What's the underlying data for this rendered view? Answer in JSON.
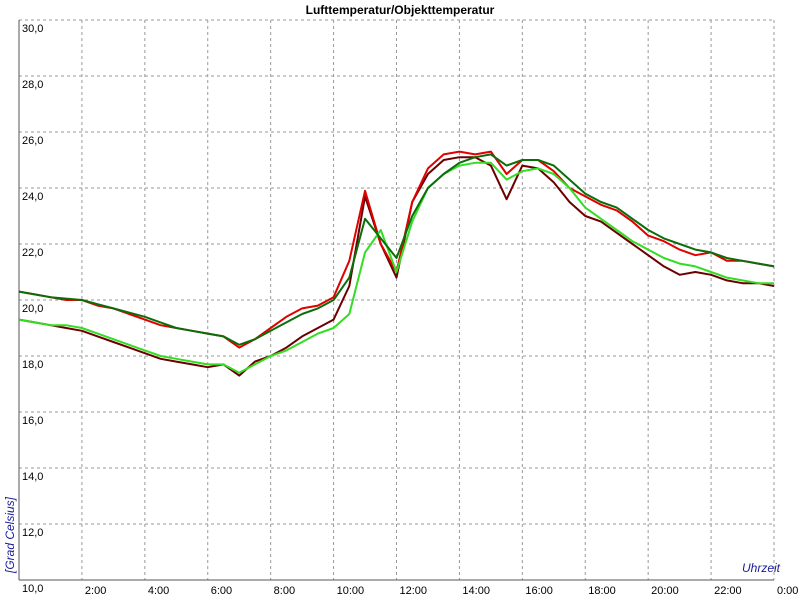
{
  "chart_data": {
    "type": "line",
    "title": "Lufttemperatur/Objekttemperatur",
    "y_label": "[Grad Celsius]",
    "x_label": "Uhrzeit",
    "xlim": [
      0,
      24
    ],
    "ylim": [
      10,
      30
    ],
    "xticks": [
      {
        "value": 2,
        "label": "2:00"
      },
      {
        "value": 4,
        "label": "4:00"
      },
      {
        "value": 6,
        "label": "6:00"
      },
      {
        "value": 8,
        "label": "8:00"
      },
      {
        "value": 10,
        "label": "10:00"
      },
      {
        "value": 12,
        "label": "12:00"
      },
      {
        "value": 14,
        "label": "14:00"
      },
      {
        "value": 16,
        "label": "16:00"
      },
      {
        "value": 18,
        "label": "18:00"
      },
      {
        "value": 20,
        "label": "20:00"
      },
      {
        "value": 22,
        "label": "22:00"
      },
      {
        "value": 24,
        "label": "0:00"
      }
    ],
    "yticks": [
      {
        "value": 10,
        "label": "10,0"
      },
      {
        "value": 12,
        "label": "12,0"
      },
      {
        "value": 14,
        "label": "14,0"
      },
      {
        "value": 16,
        "label": "16,0"
      },
      {
        "value": 18,
        "label": "18,0"
      },
      {
        "value": 20,
        "label": "20,0"
      },
      {
        "value": 22,
        "label": "22,0"
      },
      {
        "value": 24,
        "label": "24,0"
      },
      {
        "value": 26,
        "label": "26,0"
      },
      {
        "value": 28,
        "label": "28,0"
      },
      {
        "value": 30,
        "label": "30,0"
      }
    ],
    "grid": true,
    "x": [
      0,
      0.5,
      1,
      1.5,
      2,
      2.5,
      3,
      3.5,
      4,
      4.5,
      5,
      5.5,
      6,
      6.5,
      7,
      7.5,
      8,
      8.5,
      9,
      9.5,
      10,
      10.5,
      11,
      11.5,
      12,
      12.5,
      13,
      13.5,
      14,
      14.5,
      15,
      15.5,
      16,
      16.5,
      17,
      17.5,
      18,
      18.5,
      19,
      19.5,
      20,
      20.5,
      21,
      21.5,
      22,
      22.5,
      23,
      23.5,
      24
    ],
    "series": [
      {
        "color": "#6b0000",
        "values": [
          19.3,
          19.2,
          19.1,
          19.0,
          18.9,
          18.7,
          18.5,
          18.3,
          18.1,
          17.9,
          17.8,
          17.7,
          17.6,
          17.7,
          17.3,
          17.8,
          18.0,
          18.3,
          18.7,
          19.0,
          19.3,
          20.5,
          23.7,
          22.0,
          20.8,
          23.5,
          24.5,
          25.0,
          25.1,
          25.1,
          24.8,
          23.6,
          24.8,
          24.7,
          24.2,
          23.5,
          23.0,
          22.8,
          22.4,
          22.0,
          21.6,
          21.2,
          20.9,
          21.0,
          20.9,
          20.7,
          20.6,
          20.6,
          20.5
        ]
      },
      {
        "color": "#e00000",
        "values": [
          20.3,
          20.2,
          20.1,
          20.0,
          20.0,
          19.8,
          19.7,
          19.5,
          19.3,
          19.1,
          19.0,
          18.9,
          18.8,
          18.7,
          18.3,
          18.6,
          19.0,
          19.4,
          19.7,
          19.8,
          20.1,
          21.4,
          23.9,
          22.0,
          21.0,
          23.5,
          24.7,
          25.2,
          25.3,
          25.2,
          25.3,
          24.5,
          25.0,
          25.0,
          24.6,
          24.0,
          23.7,
          23.4,
          23.2,
          22.8,
          22.3,
          22.1,
          21.8,
          21.6,
          21.7,
          21.4,
          21.4,
          21.3,
          21.2
        ]
      },
      {
        "color": "#33dd22",
        "values": [
          19.3,
          19.2,
          19.1,
          19.1,
          19.0,
          18.8,
          18.6,
          18.4,
          18.2,
          18.0,
          17.9,
          17.8,
          17.7,
          17.7,
          17.4,
          17.7,
          18.0,
          18.2,
          18.5,
          18.8,
          19.0,
          19.5,
          21.7,
          22.5,
          21.0,
          22.8,
          24.0,
          24.5,
          24.8,
          24.9,
          24.9,
          24.3,
          24.6,
          24.7,
          24.5,
          24.0,
          23.3,
          22.9,
          22.5,
          22.1,
          21.8,
          21.5,
          21.3,
          21.2,
          21.0,
          20.8,
          20.7,
          20.6,
          20.6
        ]
      },
      {
        "color": "#0a6e0a",
        "values": [
          20.3,
          20.2,
          20.1,
          20.05,
          20.0,
          19.85,
          19.7,
          19.55,
          19.4,
          19.2,
          19.0,
          18.9,
          18.8,
          18.7,
          18.4,
          18.6,
          18.9,
          19.2,
          19.5,
          19.7,
          20.0,
          20.8,
          22.9,
          22.2,
          21.5,
          23.0,
          24.0,
          24.5,
          24.9,
          25.1,
          25.2,
          24.8,
          25.0,
          25.0,
          24.8,
          24.3,
          23.8,
          23.5,
          23.3,
          22.9,
          22.5,
          22.2,
          22.0,
          21.8,
          21.7,
          21.5,
          21.4,
          21.3,
          21.2
        ]
      }
    ]
  }
}
